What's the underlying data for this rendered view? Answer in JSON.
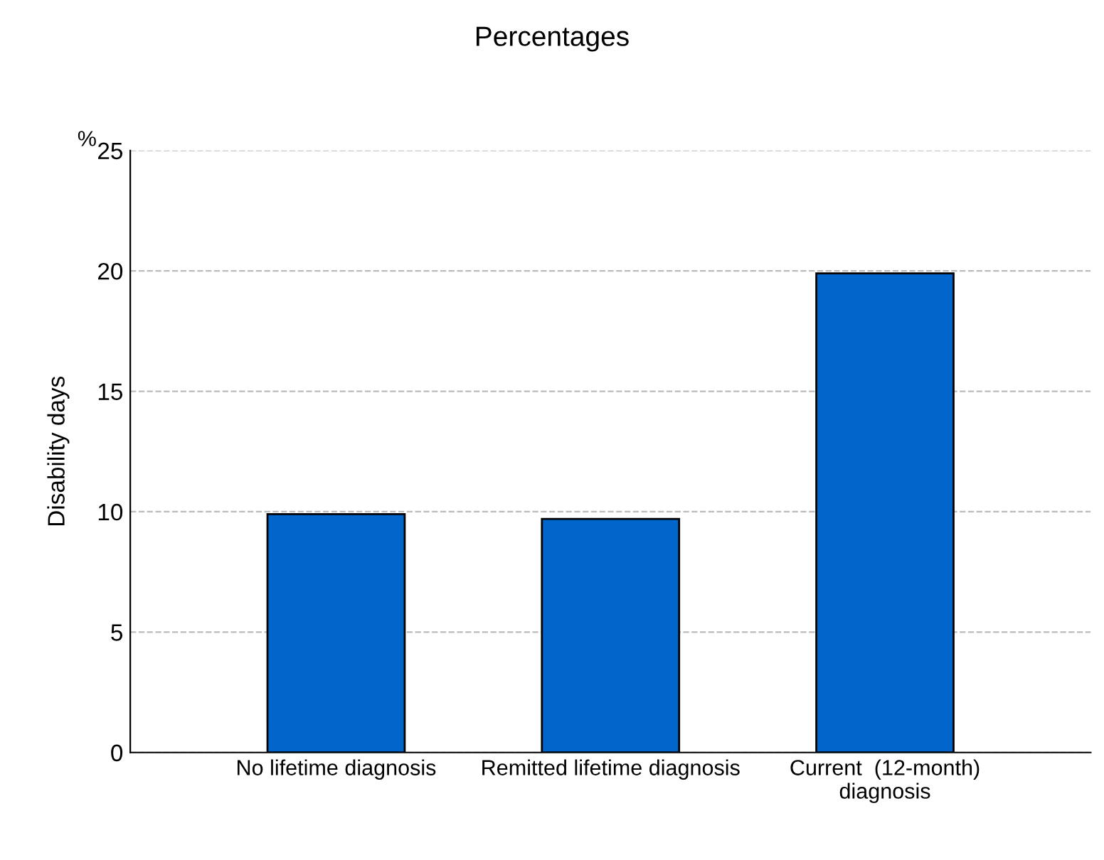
{
  "chart_data": {
    "type": "bar",
    "title": "Percentages",
    "ylabel": "Disability days",
    "annotations": [
      "%"
    ],
    "categories": [
      "No lifetime diagnosis",
      "Remitted lifetime diagnosis",
      "Current  (12-month)\ndiagnosis"
    ],
    "values": [
      9.9,
      9.7,
      19.9
    ],
    "color": "#0066cc",
    "ylim": [
      0,
      25
    ],
    "yticks": [
      0,
      5,
      10,
      15,
      20,
      25
    ],
    "grid": "y"
  }
}
